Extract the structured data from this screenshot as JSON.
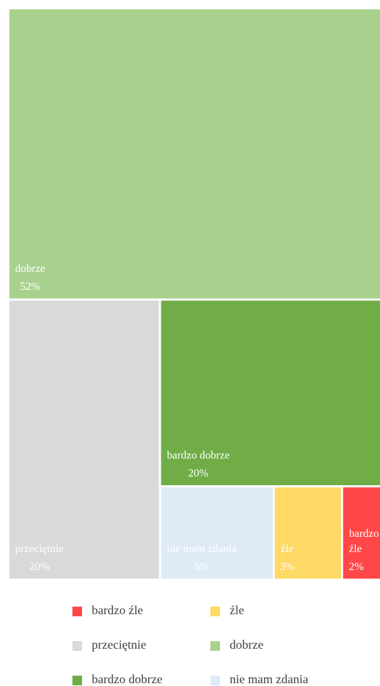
{
  "chart_data": {
    "type": "treemap",
    "categories": [
      "bardzo źle",
      "źle",
      "przeciętnie",
      "dobrze",
      "bardzo dobrze",
      "nie mam zdania"
    ],
    "values": [
      2,
      3,
      20,
      52,
      20,
      5
    ],
    "value_labels": [
      "2%",
      "3%",
      "20%",
      "52%",
      "20%",
      "5%"
    ],
    "colors": [
      "#ff4747",
      "#ffd966",
      "#d9d9d9",
      "#a9d18e",
      "#70ad47",
      "#deebf7"
    ],
    "legend": "bottom"
  }
}
